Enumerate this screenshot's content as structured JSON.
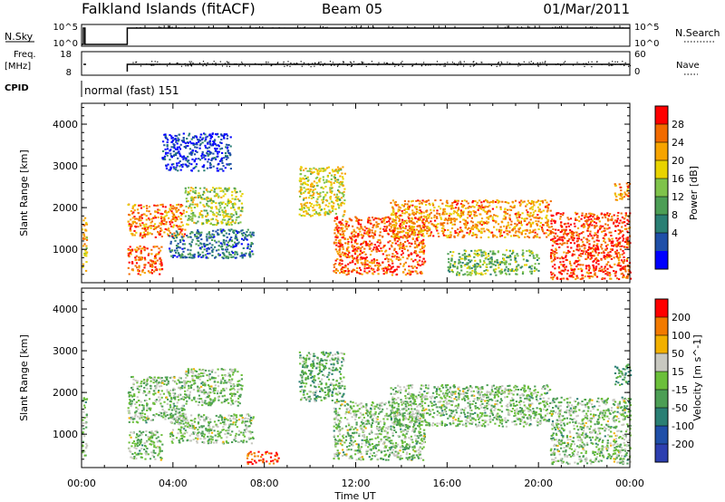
{
  "header": {
    "title": "Falkland Islands (fitACF)",
    "beam": "Beam 05",
    "date": "01/Mar/2011"
  },
  "status_panel": {
    "nsky_label": "N.Sky",
    "nsky_ticks": [
      "10^5",
      "10^0"
    ],
    "nsearch_label": "N.Search",
    "nsearch_ticks": [
      "10^5",
      "10^0"
    ],
    "freq_label_1": "Freq.",
    "freq_label_2": "[MHz]",
    "freq_ticks": [
      "18",
      "8"
    ],
    "nave_label": "Nave",
    "nave_ticks": [
      "60",
      "0"
    ],
    "cpid_label": "CPID",
    "cpid_value": "normal (fast) 151"
  },
  "chart_data": [
    {
      "type": "heatmap",
      "panel": "power",
      "ylabel": "Slant Range [km]",
      "yticks": [
        "1000",
        "2000",
        "3000",
        "4000"
      ],
      "ylim": [
        200,
        4500
      ],
      "xlim": [
        0,
        24
      ],
      "colorbar_label": "Power [dB]",
      "colorbar_ticks": [
        "28",
        "24",
        "20",
        "16",
        "12",
        "8",
        "4"
      ],
      "colorbar_colors": [
        "#0000ff",
        "#1f4fa8",
        "#2a7f74",
        "#4c9e55",
        "#7fc34b",
        "#e8d300",
        "#f7a400",
        "#f26b00",
        "#ff0000"
      ],
      "regions": [
        {
          "t0": 0.0,
          "t1": 0.2,
          "r0": 500,
          "r1": 1900,
          "level": 0.7
        },
        {
          "t0": 2.0,
          "t1": 3.5,
          "r0": 400,
          "r1": 1100,
          "level": 0.85
        },
        {
          "t0": 2.0,
          "t1": 4.5,
          "r0": 1300,
          "r1": 2100,
          "level": 0.8
        },
        {
          "t0": 4.5,
          "t1": 7.0,
          "r0": 1600,
          "r1": 2500,
          "level": 0.55
        },
        {
          "t0": 3.8,
          "t1": 7.5,
          "r0": 800,
          "r1": 1500,
          "level": 0.25
        },
        {
          "t0": 3.5,
          "t1": 6.5,
          "r0": 2900,
          "r1": 3800,
          "level": 0.1
        },
        {
          "t0": 9.5,
          "t1": 11.5,
          "r0": 1800,
          "r1": 3000,
          "level": 0.6
        },
        {
          "t0": 11.0,
          "t1": 15.0,
          "r0": 400,
          "r1": 1800,
          "level": 0.85
        },
        {
          "t0": 13.5,
          "t1": 20.5,
          "r0": 1300,
          "r1": 2200,
          "level": 0.75
        },
        {
          "t0": 16.0,
          "t1": 20.0,
          "r0": 400,
          "r1": 1000,
          "level": 0.45
        },
        {
          "t0": 20.5,
          "t1": 24.0,
          "r0": 300,
          "r1": 1900,
          "level": 0.9
        },
        {
          "t0": 23.3,
          "t1": 24.0,
          "r0": 2200,
          "r1": 2600,
          "level": 0.75
        }
      ]
    },
    {
      "type": "heatmap",
      "panel": "velocity",
      "xlabel": "Time UT",
      "ylabel": "Slant Range [km]",
      "yticks": [
        "1000",
        "2000",
        "3000",
        "4000"
      ],
      "ylim": [
        200,
        4500
      ],
      "xlim": [
        0,
        24
      ],
      "xticks": [
        "00:00",
        "04:00",
        "08:00",
        "12:00",
        "16:00",
        "20:00",
        "00:00"
      ],
      "colorbar_label": "Velocity [m s^-1]",
      "colorbar_ticks": [
        "200",
        "100",
        "50",
        "15",
        "-15",
        "-50",
        "-100",
        "-200"
      ],
      "colorbar_colors": [
        "#2d3fb0",
        "#1f4fa8",
        "#2a7f74",
        "#4c9e55",
        "#6bbf3a",
        "#c8c8c0",
        "#f2b000",
        "#f27a00",
        "#ff0000"
      ],
      "regions": [
        {
          "t0": 0.0,
          "t1": 0.2,
          "r0": 500,
          "r1": 1900,
          "level": 0.5
        },
        {
          "t0": 2.0,
          "t1": 4.5,
          "r0": 1300,
          "r1": 2400,
          "level": 0.5
        },
        {
          "t0": 4.5,
          "t1": 7.0,
          "r0": 1700,
          "r1": 2600,
          "level": 0.5
        },
        {
          "t0": 2.0,
          "t1": 3.5,
          "r0": 400,
          "r1": 1100,
          "level": 0.5
        },
        {
          "t0": 3.8,
          "t1": 7.5,
          "r0": 800,
          "r1": 1500,
          "level": 0.5
        },
        {
          "t0": 7.2,
          "t1": 8.6,
          "r0": 300,
          "r1": 600,
          "level": 0.92
        },
        {
          "t0": 9.5,
          "t1": 11.5,
          "r0": 1800,
          "r1": 3000,
          "level": 0.45
        },
        {
          "t0": 11.0,
          "t1": 15.0,
          "r0": 400,
          "r1": 1800,
          "level": 0.5
        },
        {
          "t0": 13.5,
          "t1": 20.5,
          "r0": 1200,
          "r1": 2200,
          "level": 0.5
        },
        {
          "t0": 20.5,
          "t1": 24.0,
          "r0": 300,
          "r1": 1900,
          "level": 0.5
        },
        {
          "t0": 23.3,
          "t1": 24.0,
          "r0": 2200,
          "r1": 2700,
          "level": 0.4
        }
      ]
    }
  ]
}
